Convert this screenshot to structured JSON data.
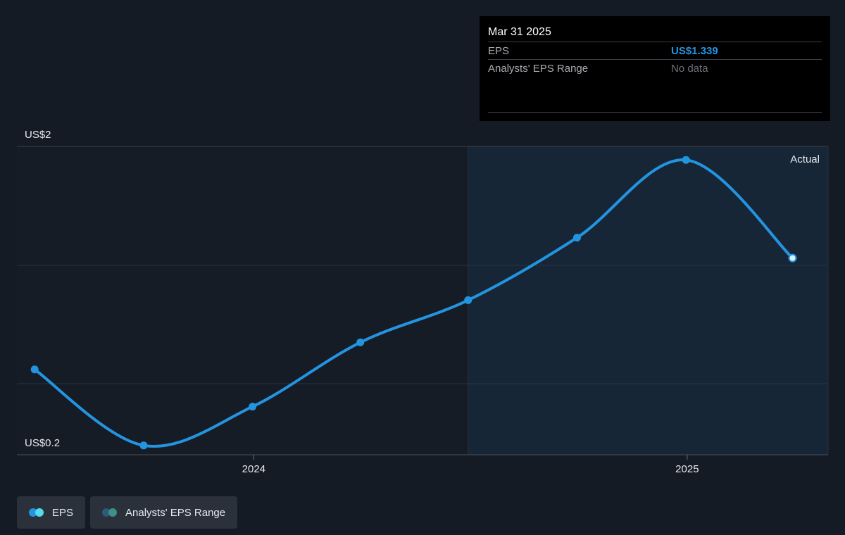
{
  "tooltip": {
    "date": "Mar 31 2025",
    "rows": [
      {
        "label": "EPS",
        "value": "US$1.339"
      },
      {
        "label": "Analysts' EPS Range",
        "value": "No data"
      }
    ]
  },
  "legend": {
    "items": [
      {
        "label": "EPS",
        "colors": [
          "#2394e0",
          "#54dcec"
        ]
      },
      {
        "label": "Analysts' EPS Range",
        "colors": [
          "#2c5a7a",
          "#3e8f8a"
        ]
      }
    ]
  },
  "colors": {
    "line": "#2394e0",
    "highlight_fill": "#172637",
    "grid": "#2c323b"
  },
  "chart_data": {
    "type": "line",
    "y_tick_labels": {
      "top": "US$2",
      "bottom": "US$0.2"
    },
    "ylim": [
      0.2,
      2.0
    ],
    "xlim": [
      "2023-06-15",
      "2025-04-30"
    ],
    "x_tick_labels": [
      {
        "label": "2024",
        "x": "2024-01-01"
      },
      {
        "label": "2025",
        "x": "2025-01-01"
      }
    ],
    "region_label": "Actual",
    "region_start": "2024-06-30",
    "grid": true,
    "series": [
      {
        "name": "EPS",
        "points": [
          {
            "x": "2023-06-30",
            "y": 0.68
          },
          {
            "x": "2023-09-30",
            "y": 0.23
          },
          {
            "x": "2023-12-31",
            "y": 0.46
          },
          {
            "x": "2024-03-31",
            "y": 0.84
          },
          {
            "x": "2024-06-30",
            "y": 1.09
          },
          {
            "x": "2024-09-30",
            "y": 1.46
          },
          {
            "x": "2024-12-31",
            "y": 1.92
          },
          {
            "x": "2025-03-31",
            "y": 1.339
          }
        ]
      }
    ]
  }
}
